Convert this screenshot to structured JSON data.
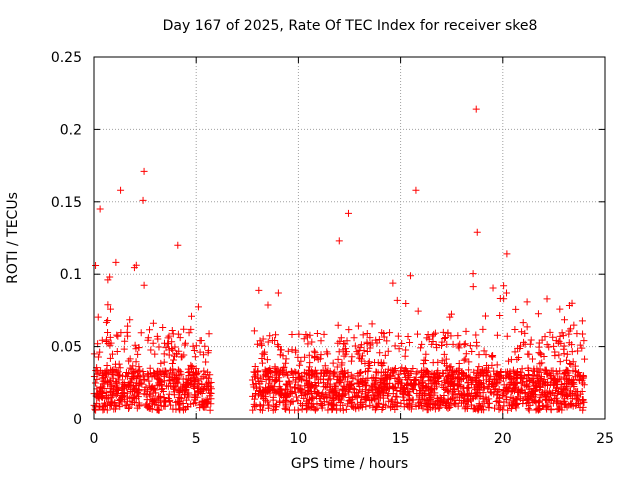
{
  "chart_data": {
    "type": "scatter",
    "title": "Day 167 of 2025, Rate Of TEC Index for receiver ske8",
    "xlabel": "GPS time / hours",
    "ylabel": "ROTI / TECUs",
    "xlim": [
      0,
      25
    ],
    "ylim": [
      0,
      0.25
    ],
    "xticks": [
      "0",
      "5",
      "10",
      "15",
      "20",
      "25"
    ],
    "yticks": [
      "0",
      "0.05",
      "0.1",
      "0.15",
      "0.2",
      "0.25"
    ],
    "grid": true,
    "marker": "plus",
    "series": [
      {
        "name": "ROTI",
        "color": "#ff0000",
        "data_gap_hours": [
          5.75,
          7.75
        ],
        "time_range_hours": [
          0,
          24
        ],
        "notable_points": [
          {
            "x": 0.3,
            "y": 0.145
          },
          {
            "x": 1.3,
            "y": 0.158
          },
          {
            "x": 2.45,
            "y": 0.171
          },
          {
            "x": 2.4,
            "y": 0.151
          },
          {
            "x": 4.1,
            "y": 0.12
          },
          {
            "x": 12.0,
            "y": 0.123
          },
          {
            "x": 12.45,
            "y": 0.142
          },
          {
            "x": 15.75,
            "y": 0.158
          },
          {
            "x": 18.7,
            "y": 0.214
          },
          {
            "x": 18.75,
            "y": 0.129
          },
          {
            "x": 20.2,
            "y": 0.114
          }
        ]
      }
    ]
  }
}
